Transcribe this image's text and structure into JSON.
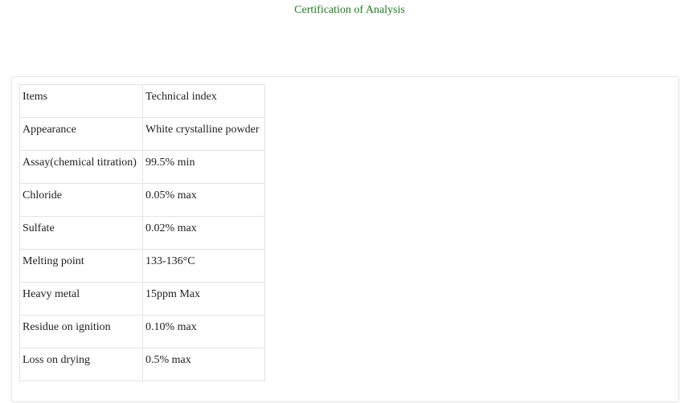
{
  "title": "Certification of Analysis",
  "title_color": "#217a21",
  "table": {
    "header": [
      "Items",
      "Technical index"
    ],
    "rows": [
      [
        "Appearance",
        "White crystalline powder"
      ],
      [
        "Assay(chemical titration)",
        "99.5% min"
      ],
      [
        "Chloride",
        "0.05% max"
      ],
      [
        "Sulfate",
        "0.02% max"
      ],
      [
        "Melting point",
        "133-136°C"
      ],
      [
        "Heavy metal",
        "15ppm Max"
      ],
      [
        "Residue on ignition",
        "0.10% max"
      ],
      [
        "Loss on drying",
        "0.5% max"
      ]
    ]
  }
}
